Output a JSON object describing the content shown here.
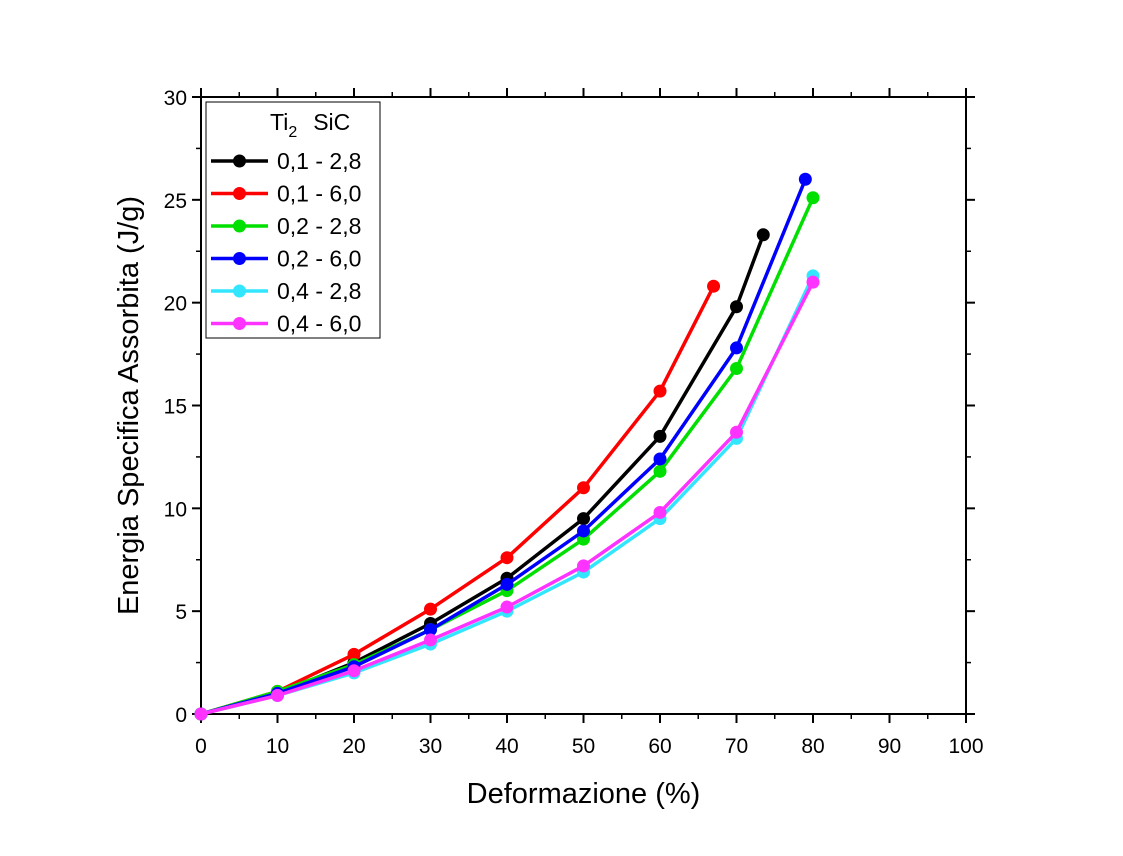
{
  "chart_data": {
    "type": "line",
    "title": "",
    "xlabel": "Deformazione (%)",
    "ylabel": "Energia Specifica Assorbita (J/g)",
    "xlim": [
      0,
      100
    ],
    "ylim": [
      0,
      30
    ],
    "xticks": [
      "0",
      "10",
      "20",
      "30",
      "40",
      "50",
      "60",
      "70",
      "80",
      "90",
      "100"
    ],
    "yticks": [
      "0",
      "5",
      "10",
      "15",
      "20",
      "25",
      "30"
    ],
    "grid": false,
    "legend": {
      "position": "top-left",
      "header_main": "Ti",
      "header_sub": "2",
      "header_second": "SiC"
    },
    "series": [
      {
        "name": "0,1 - 2,8",
        "color": "#000000",
        "x": [
          0,
          10,
          20,
          30,
          40,
          50,
          60,
          70,
          73.5
        ],
        "y": [
          0,
          1.0,
          2.5,
          4.4,
          6.6,
          9.5,
          13.5,
          19.8,
          23.3
        ]
      },
      {
        "name": "0,1 - 6,0",
        "color": "#ff0000",
        "x": [
          0,
          10,
          20,
          30,
          40,
          50,
          60,
          67
        ],
        "y": [
          0,
          1.1,
          2.9,
          5.1,
          7.6,
          11.0,
          15.7,
          20.8
        ]
      },
      {
        "name": "0,2 - 2,8",
        "color": "#00e000",
        "x": [
          0,
          10,
          20,
          30,
          40,
          50,
          60,
          70,
          80
        ],
        "y": [
          0,
          1.1,
          2.4,
          4.1,
          6.0,
          8.5,
          11.8,
          16.8,
          25.1
        ]
      },
      {
        "name": "0,2 - 6,0",
        "color": "#0000ff",
        "x": [
          0,
          10,
          20,
          30,
          40,
          50,
          60,
          70,
          79
        ],
        "y": [
          0,
          1.0,
          2.3,
          4.1,
          6.3,
          8.9,
          12.4,
          17.8,
          26.0
        ]
      },
      {
        "name": "0,4 - 2,8",
        "color": "#33e6ff",
        "x": [
          0,
          10,
          20,
          30,
          40,
          50,
          60,
          70,
          80
        ],
        "y": [
          0,
          0.9,
          2.0,
          3.4,
          5.0,
          6.9,
          9.5,
          13.4,
          21.3
        ]
      },
      {
        "name": "0,4 - 6,0",
        "color": "#ff33ff",
        "x": [
          0,
          10,
          20,
          30,
          40,
          50,
          60,
          70,
          80
        ],
        "y": [
          0,
          0.9,
          2.1,
          3.6,
          5.2,
          7.2,
          9.8,
          13.7,
          21.0
        ]
      }
    ]
  }
}
